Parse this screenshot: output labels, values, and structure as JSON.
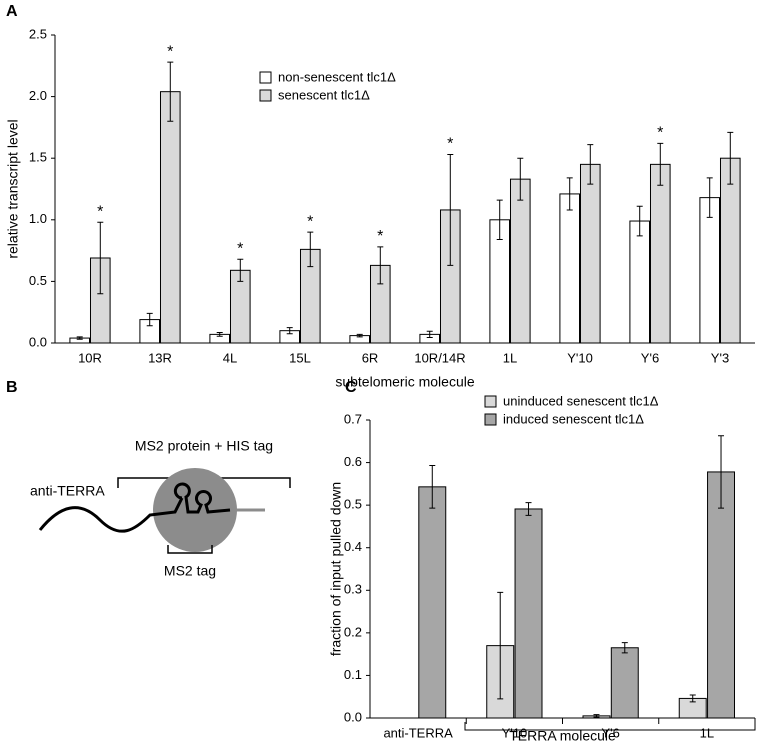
{
  "panel_labels": [
    "A",
    "B",
    "C"
  ],
  "diagram": {
    "labels": [
      "MS2 protein + HIS tag",
      "anti-TERRA",
      "MS2 tag"
    ]
  },
  "chart_data": [
    {
      "type": "bar",
      "y_label": "relative transcript level",
      "x_label": "subtelomeric molecule",
      "categories": [
        "10R",
        "13R",
        "4L",
        "15L",
        "6R",
        "10R/14R",
        "1L",
        "Y'10",
        "Y'6",
        "Y'3"
      ],
      "series": [
        {
          "name": "non-senescent tlc1Δ",
          "color": "#ffffff",
          "values": [
            0.04,
            0.19,
            0.07,
            0.1,
            0.06,
            0.07,
            1.0,
            1.21,
            0.99,
            1.18
          ],
          "errors": [
            0.01,
            0.05,
            0.015,
            0.025,
            0.01,
            0.025,
            0.16,
            0.13,
            0.12,
            0.16
          ]
        },
        {
          "name": "senescent tlc1Δ",
          "color": "#d9d9d9",
          "values": [
            0.69,
            2.04,
            0.59,
            0.76,
            0.63,
            1.08,
            1.33,
            1.45,
            1.45,
            1.5
          ],
          "errors": [
            0.29,
            0.24,
            0.09,
            0.14,
            0.15,
            0.45,
            0.17,
            0.16,
            0.17,
            0.21
          ]
        }
      ],
      "significance": [
        "*",
        "*",
        "*",
        "*",
        "*",
        "*",
        null,
        null,
        "*",
        null
      ],
      "ylim": [
        0,
        2.5
      ],
      "yticks": [
        {
          "value": 0,
          "label": "0.0"
        },
        0.5,
        {
          "value": 1,
          "label": "1.0"
        },
        1.5,
        {
          "value": 2,
          "label": "2.0"
        },
        2.5
      ]
    },
    {
      "type": "bar",
      "y_label": "fraction of input pulled down",
      "x_label": "TERRA molecule",
      "categories": [
        "anti-TERRA",
        "Y'10",
        "Y'6",
        "1L"
      ],
      "series": [
        {
          "name": "uninduced senescent tlc1Δ",
          "color": "#d9d9d9",
          "values": [
            null,
            0.17,
            0.005,
            0.046
          ],
          "errors": [
            null,
            0.125,
            0.003,
            0.008
          ]
        },
        {
          "name": "induced senescent tlc1Δ",
          "color": "#a6a6a6",
          "values": [
            0.543,
            0.491,
            0.165,
            0.578
          ],
          "errors": [
            0.05,
            0.015,
            0.012,
            0.085
          ]
        }
      ],
      "ylim": [
        0,
        0.7
      ],
      "yticks": [
        {
          "value": 0,
          "label": "0.0"
        },
        0.1,
        0.2,
        0.3,
        0.4,
        0.5,
        0.6,
        0.7
      ]
    }
  ]
}
